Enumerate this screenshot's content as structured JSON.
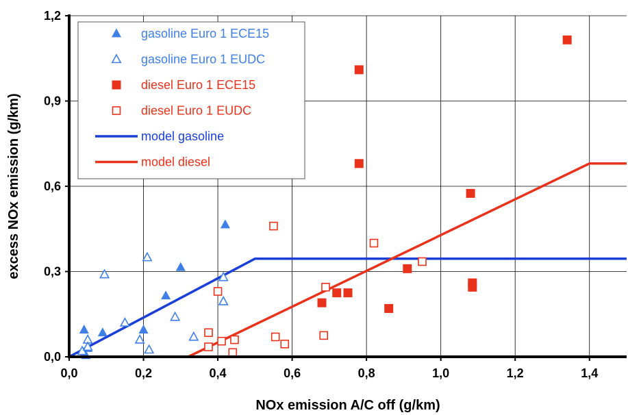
{
  "chart_data": {
    "type": "scatter",
    "xlabel": "NOx emission A/C off (g/km)",
    "ylabel": "excess NOx emission (g/km)",
    "xlim": [
      0,
      1.5
    ],
    "ylim": [
      0,
      1.2
    ],
    "x_ticks": [
      "0,0",
      "0,2",
      "0,4",
      "0,6",
      "0,8",
      "1,0",
      "1,2",
      "1,4"
    ],
    "y_ticks": [
      "0,0",
      "0,3",
      "0,6",
      "0,9",
      "1,2"
    ],
    "x_tick_values": [
      0,
      0.2,
      0.4,
      0.6,
      0.8,
      1.0,
      1.2,
      1.4
    ],
    "y_tick_values": [
      0,
      0.3,
      0.6,
      0.9,
      1.2
    ],
    "grid": true,
    "legend_position": "top-left",
    "series": [
      {
        "name": "gasoline Euro 1 ECE15",
        "marker": "triangle-filled",
        "color": "#3f7fe6",
        "points": [
          [
            0.04,
            0.095
          ],
          [
            0.05,
            0.03
          ],
          [
            0.04,
            0.01
          ],
          [
            0.045,
            0.005
          ],
          [
            0.09,
            0.085
          ],
          [
            0.2,
            0.095
          ],
          [
            0.26,
            0.215
          ],
          [
            0.3,
            0.315
          ],
          [
            0.42,
            0.465
          ]
        ]
      },
      {
        "name": "gasoline Euro 1 EUDC",
        "marker": "triangle-open",
        "color": "#3f7fe6",
        "points": [
          [
            0.035,
            0.02
          ],
          [
            0.05,
            0.06
          ],
          [
            0.05,
            0.035
          ],
          [
            0.095,
            0.29
          ],
          [
            0.15,
            0.12
          ],
          [
            0.19,
            0.06
          ],
          [
            0.21,
            0.35
          ],
          [
            0.215,
            0.025
          ],
          [
            0.285,
            0.14
          ],
          [
            0.335,
            0.07
          ],
          [
            0.415,
            0.28
          ],
          [
            0.415,
            0.195
          ]
        ]
      },
      {
        "name": "diesel Euro 1 ECE15",
        "marker": "square-filled",
        "color": "#e8321c",
        "points": [
          [
            0.68,
            0.19
          ],
          [
            0.72,
            0.225
          ],
          [
            0.75,
            0.225
          ],
          [
            0.78,
            1.01
          ],
          [
            0.78,
            0.68
          ],
          [
            0.86,
            0.17
          ],
          [
            0.91,
            0.31
          ],
          [
            1.08,
            0.575
          ],
          [
            1.085,
            0.26
          ],
          [
            1.085,
            0.245
          ],
          [
            1.34,
            1.115
          ]
        ]
      },
      {
        "name": "diesel Euro 1 EUDC",
        "marker": "square-open",
        "color": "#e8321c",
        "points": [
          [
            0.375,
            0.085
          ],
          [
            0.375,
            0.035
          ],
          [
            0.4,
            0.23
          ],
          [
            0.41,
            0.055
          ],
          [
            0.44,
            0.015
          ],
          [
            0.445,
            0.06
          ],
          [
            0.55,
            0.46
          ],
          [
            0.555,
            0.07
          ],
          [
            0.58,
            0.045
          ],
          [
            0.685,
            0.075
          ],
          [
            0.69,
            0.245
          ],
          [
            0.82,
            0.4
          ],
          [
            0.95,
            0.335
          ]
        ]
      },
      {
        "name": "model gasoline",
        "marker": "line",
        "color": "#1a3fd6",
        "points": [
          [
            0.0,
            0.0
          ],
          [
            0.5,
            0.345
          ],
          [
            1.5,
            0.345
          ]
        ]
      },
      {
        "name": "model diesel",
        "marker": "line",
        "color": "#e8321c",
        "points": [
          [
            0.0,
            0.0
          ],
          [
            0.32,
            0.0
          ],
          [
            1.4,
            0.68
          ],
          [
            1.5,
            0.68
          ]
        ]
      }
    ]
  }
}
